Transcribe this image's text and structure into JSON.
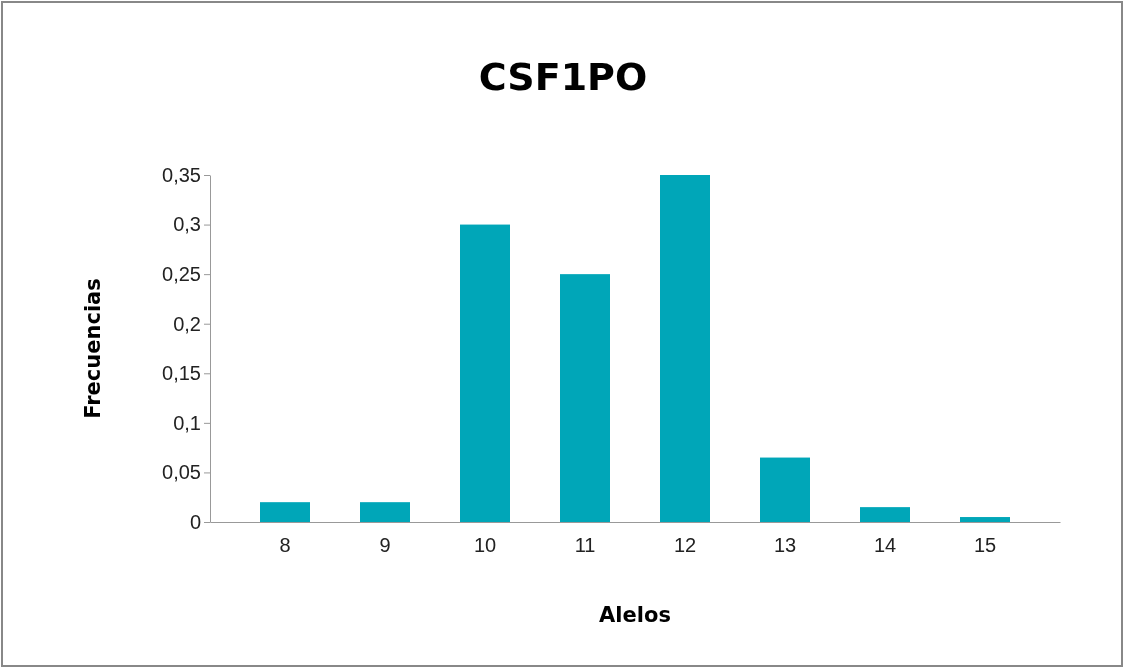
{
  "chart_data": {
    "type": "bar",
    "title": "CSF1PO",
    "xlabel": "Alelos",
    "ylabel": "Frecuencias",
    "categories": [
      "8",
      "9",
      "10",
      "11",
      "12",
      "13",
      "14",
      "15"
    ],
    "values": [
      0.02,
      0.02,
      0.3,
      0.25,
      0.35,
      0.065,
      0.015,
      0.005
    ],
    "color": "#00a6b8",
    "ylim": [
      0,
      0.35
    ],
    "yticks": [
      0,
      {
        "value": 0.05,
        "label": "0,05"
      },
      {
        "value": 0.1,
        "label": "0,1"
      },
      {
        "value": 0.15,
        "label": "0,15"
      },
      {
        "value": 0.2,
        "label": "0,2"
      },
      {
        "value": 0.25,
        "label": "0,25"
      },
      {
        "value": 0.3,
        "label": "0,3"
      },
      {
        "value": 0.35,
        "label": "0,35"
      }
    ]
  }
}
